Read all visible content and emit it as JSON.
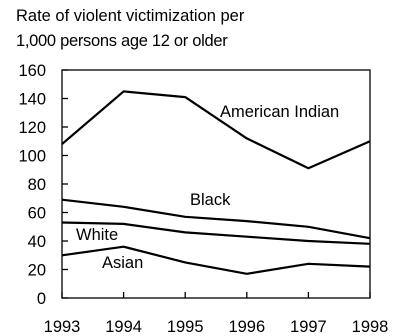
{
  "chart_data": {
    "type": "line",
    "title": "Rate of violent victimization per",
    "subtitle": "1,000 persons age 12 or older",
    "xlabel": "",
    "ylabel": "",
    "x": [
      "1993",
      "1994",
      "1995",
      "1996",
      "1997",
      "1998"
    ],
    "ylim": [
      0,
      160
    ],
    "yticks": [
      "0",
      "20",
      "40",
      "60",
      "80",
      "100",
      "120",
      "140",
      "160"
    ],
    "grid": false,
    "series": [
      {
        "name": "American Indian",
        "values": [
          108,
          145,
          141,
          112,
          91,
          110
        ]
      },
      {
        "name": "Black",
        "values": [
          69,
          64,
          57,
          54,
          50,
          42
        ]
      },
      {
        "name": "White",
        "values": [
          53,
          52,
          46,
          43,
          40,
          38
        ]
      },
      {
        "name": "Asian",
        "values": [
          30,
          36,
          25,
          17,
          24,
          22
        ]
      }
    ]
  }
}
